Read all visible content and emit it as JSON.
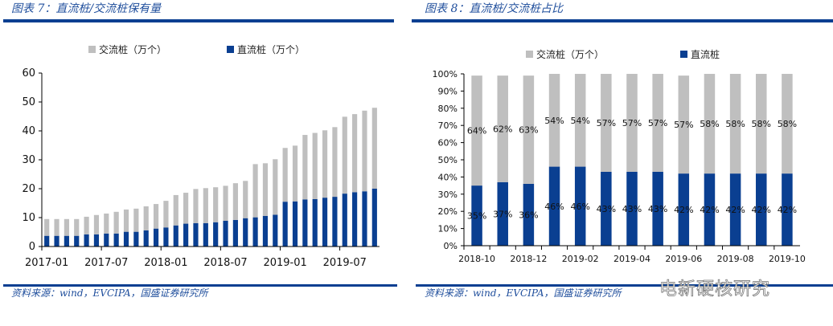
{
  "left": {
    "title": "图表 7：直流桩/交流桩保有量",
    "source": "资料来源：wind，EVCIPA，国盛证券研究所"
  },
  "right": {
    "title": "图表 8：直流桩/交流桩占比",
    "source": "资料来源：wind，EVCIPA，国盛证券研究所"
  },
  "watermark": "电新硬核研究",
  "colors": {
    "ac": "#bfbfbf",
    "dc": "#0a3f91",
    "title": "#1f4e9c"
  },
  "chart_data": [
    {
      "type": "bar",
      "stacked": true,
      "title": "直流桩/交流桩保有量",
      "categories": [
        "2017-01",
        "2017-02",
        "2017-03",
        "2017-04",
        "2017-05",
        "2017-06",
        "2017-07",
        "2017-08",
        "2017-09",
        "2017-10",
        "2017-11",
        "2017-12",
        "2018-01",
        "2018-02",
        "2018-03",
        "2018-04",
        "2018-05",
        "2018-06",
        "2018-07",
        "2018-08",
        "2018-09",
        "2018-10",
        "2018-11",
        "2018-12",
        "2019-01",
        "2019-02",
        "2019-03",
        "2019-04",
        "2019-05",
        "2019-06",
        "2019-07",
        "2019-08",
        "2019-09",
        "2019-10"
      ],
      "tick_labels": [
        "2017-01",
        "2017-07",
        "2018-01",
        "2018-07",
        "2019-01",
        "2019-07"
      ],
      "series": [
        {
          "name": "直流桩（万个）",
          "values": [
            3.7,
            3.7,
            3.7,
            3.7,
            4.2,
            4.2,
            4.5,
            4.5,
            5.1,
            5.1,
            5.6,
            6.2,
            6.6,
            7.3,
            7.9,
            8.1,
            8.1,
            8.4,
            8.9,
            9.2,
            9.8,
            10.1,
            10.6,
            11.0,
            15.5,
            15.6,
            16.3,
            16.4,
            16.9,
            17.2,
            18.3,
            18.8,
            19.1,
            20.0
          ]
        },
        {
          "name": "交流桩（万个）",
          "values": [
            5.8,
            5.8,
            5.8,
            5.8,
            6.1,
            6.7,
            6.9,
            7.5,
            7.7,
            8.0,
            8.3,
            8.5,
            9.2,
            10.5,
            10.7,
            11.8,
            12.1,
            12.1,
            12.1,
            12.7,
            12.9,
            18.4,
            18.2,
            19.2,
            18.6,
            19.3,
            22.3,
            22.9,
            23.3,
            24.1,
            26.6,
            27.0,
            27.9,
            28.0
          ]
        }
      ],
      "ylim": [
        0,
        60
      ],
      "yticks": [
        0,
        10,
        20,
        30,
        40,
        50,
        60
      ],
      "legend": "top"
    },
    {
      "type": "bar",
      "stacked": true,
      "title": "直流桩/交流桩占比",
      "categories": [
        "2018-10",
        "2018-11",
        "2018-12",
        "2019-01",
        "2019-02",
        "2019-03",
        "2019-04",
        "2019-05",
        "2019-06",
        "2019-07",
        "2019-08",
        "2019-09",
        "2019-10"
      ],
      "tick_labels": [
        "2018-10",
        "2018-12",
        "2019-02",
        "2019-04",
        "2019-06",
        "2019-08",
        "2019-10"
      ],
      "series": [
        {
          "name": "直流桩",
          "values": [
            35,
            37,
            36,
            46,
            46,
            43,
            43,
            43,
            42,
            42,
            42,
            42,
            42
          ],
          "labels": [
            "35%",
            "37%",
            "36%",
            "46%",
            "46%",
            "43%",
            "43%",
            "43%",
            "42%",
            "42%",
            "42%",
            "42%",
            "42%"
          ]
        },
        {
          "name": "交流桩（万个）",
          "values": [
            64,
            62,
            63,
            54,
            54,
            57,
            57,
            57,
            57,
            58,
            58,
            58,
            58
          ],
          "labels": [
            "64%",
            "62%",
            "63%",
            "54%",
            "54%",
            "57%",
            "57%",
            "57%",
            "57%",
            "58%",
            "58%",
            "58%",
            "58%"
          ]
        }
      ],
      "ylim": [
        0,
        100
      ],
      "yticks": [
        "0%",
        "10%",
        "20%",
        "30%",
        "40%",
        "50%",
        "60%",
        "70%",
        "80%",
        "90%",
        "100%"
      ],
      "legend": "top"
    }
  ]
}
